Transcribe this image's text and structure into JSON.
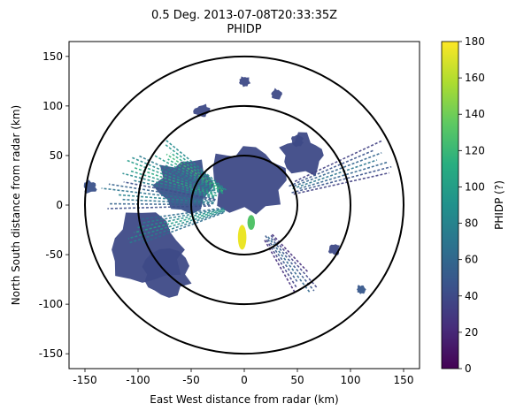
{
  "chart_data": {
    "type": "heatmap",
    "title_line1": "0.5 Deg. 2013-07-08T20:33:35Z",
    "title_line2": "PHIDP",
    "xlabel": "East West distance from radar (km)",
    "ylabel": "North South distance from radar (km)",
    "xlim": [
      -165,
      165
    ],
    "ylim": [
      -165,
      165
    ],
    "xticks": [
      -150,
      -100,
      -50,
      0,
      50,
      100,
      150
    ],
    "yticks": [
      -150,
      -100,
      -50,
      0,
      50,
      100,
      150
    ],
    "range_rings_km": [
      50,
      100,
      150
    ],
    "colorbar": {
      "label": "PHIDP (?)",
      "min": 0,
      "max": 180,
      "ticks": [
        0,
        20,
        40,
        60,
        80,
        100,
        120,
        140,
        160,
        180
      ],
      "colormap": [
        "#440154",
        "#472d7b",
        "#3b528b",
        "#2c728e",
        "#21918c",
        "#28ae80",
        "#5ec962",
        "#addc30",
        "#fde725"
      ]
    },
    "echo_regions": [
      {
        "kind": "blob",
        "cx": 5,
        "cy": 25,
        "r": 40,
        "value": 40
      },
      {
        "kind": "blob",
        "cx": 55,
        "cy": 50,
        "r": 22,
        "value": 40
      },
      {
        "kind": "blob",
        "cx": -55,
        "cy": 20,
        "r": 30,
        "value": 45
      },
      {
        "kind": "blob",
        "cx": -90,
        "cy": -45,
        "r": 40,
        "value": 40
      },
      {
        "kind": "blob",
        "cx": -75,
        "cy": -70,
        "r": 25,
        "value": 40
      },
      {
        "kind": "blob",
        "cx": -145,
        "cy": 18,
        "r": 7,
        "value": 45
      },
      {
        "kind": "blob",
        "cx": -40,
        "cy": 95,
        "r": 8,
        "value": 40
      },
      {
        "kind": "blob",
        "cx": 0,
        "cy": 125,
        "r": 6,
        "value": 40
      },
      {
        "kind": "blob",
        "cx": 30,
        "cy": 112,
        "r": 6,
        "value": 40
      },
      {
        "kind": "blob",
        "cx": 50,
        "cy": 65,
        "r": 6,
        "value": 40
      },
      {
        "kind": "blob",
        "cx": 85,
        "cy": -45,
        "r": 6,
        "value": 40
      },
      {
        "kind": "blob",
        "cx": 110,
        "cy": -85,
        "r": 5,
        "value": 50
      },
      {
        "kind": "streak",
        "angle_deg": 160,
        "from": 30,
        "to": 125,
        "value": 110
      },
      {
        "kind": "streak",
        "angle_deg": 145,
        "from": 25,
        "to": 100,
        "value": 120
      },
      {
        "kind": "streak",
        "angle_deg": 195,
        "from": 20,
        "to": 110,
        "value": 100
      },
      {
        "kind": "streak",
        "angle_deg": 175,
        "from": 30,
        "to": 130,
        "value": 80
      },
      {
        "kind": "streak",
        "angle_deg": 20,
        "from": 50,
        "to": 145,
        "value": 70
      },
      {
        "kind": "streak",
        "angle_deg": 305,
        "from": 40,
        "to": 105,
        "value": 60
      },
      {
        "kind": "core",
        "x": [
          -6,
          2
        ],
        "y": [
          -45,
          -20
        ],
        "value": 175
      },
      {
        "kind": "core",
        "x": [
          3,
          10
        ],
        "y": [
          -25,
          -10
        ],
        "value": 130
      }
    ]
  }
}
